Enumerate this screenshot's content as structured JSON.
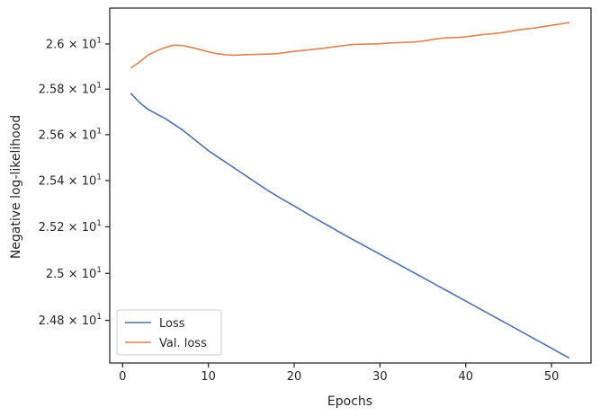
{
  "chart_data": {
    "type": "line",
    "xlabel": "Epochs",
    "ylabel": "Negative log-likelihood",
    "xlim": [
      -1.5,
      54.6
    ],
    "ylim": [
      24.62,
      26.16
    ],
    "y_scale": "log",
    "grid": false,
    "legend_position": "lower left",
    "x_ticks": [
      {
        "value": 0,
        "label": "0"
      },
      {
        "value": 10,
        "label": "10"
      },
      {
        "value": 20,
        "label": "20"
      },
      {
        "value": 30,
        "label": "30"
      },
      {
        "value": 40,
        "label": "40"
      },
      {
        "value": 50,
        "label": "50"
      }
    ],
    "y_ticks": [
      {
        "value": 24.8,
        "label": "2.48 × 10¹"
      },
      {
        "value": 25.0,
        "label": "2.5 × 10¹"
      },
      {
        "value": 25.2,
        "label": "2.52 × 10¹"
      },
      {
        "value": 25.4,
        "label": "2.54 × 10¹"
      },
      {
        "value": 25.6,
        "label": "2.56 × 10¹"
      },
      {
        "value": 25.8,
        "label": "2.58 × 10¹"
      },
      {
        "value": 26.0,
        "label": "2.6 × 10¹"
      }
    ],
    "series": [
      {
        "name": "Loss",
        "color": "#4c72b0",
        "x": [
          1,
          2,
          3,
          4,
          5,
          6,
          7,
          8,
          9,
          10,
          11,
          12,
          13,
          14,
          15,
          16,
          17,
          18,
          19,
          20,
          21,
          22,
          23,
          24,
          25,
          26,
          27,
          28,
          29,
          30,
          31,
          32,
          33,
          34,
          35,
          36,
          37,
          38,
          39,
          40,
          41,
          42,
          43,
          44,
          45,
          46,
          47,
          48,
          49,
          50,
          51,
          52
        ],
        "y": [
          25.78,
          25.74,
          25.71,
          25.69,
          25.67,
          25.645,
          25.62,
          25.59,
          25.56,
          25.53,
          25.505,
          25.48,
          25.455,
          25.43,
          25.405,
          25.38,
          25.355,
          25.333,
          25.311,
          25.29,
          25.268,
          25.246,
          25.225,
          25.204,
          25.183,
          25.162,
          25.142,
          25.122,
          25.102,
          25.082,
          25.062,
          25.042,
          25.022,
          25.002,
          24.982,
          24.962,
          24.942,
          24.922,
          24.902,
          24.882,
          24.862,
          24.842,
          24.822,
          24.802,
          24.782,
          24.762,
          24.742,
          24.722,
          24.702,
          24.682,
          24.662,
          24.642
        ]
      },
      {
        "name": "Val. loss",
        "color": "#dd8452",
        "x": [
          1,
          2,
          3,
          4,
          5,
          6,
          7,
          8,
          9,
          10,
          11,
          12,
          13,
          14,
          15,
          16,
          17,
          18,
          19,
          20,
          21,
          22,
          23,
          24,
          25,
          26,
          27,
          28,
          29,
          30,
          31,
          32,
          33,
          34,
          35,
          36,
          37,
          38,
          39,
          40,
          41,
          42,
          43,
          44,
          45,
          46,
          47,
          48,
          49,
          50,
          51,
          52
        ],
        "y": [
          25.895,
          25.92,
          25.952,
          25.97,
          25.985,
          25.995,
          25.993,
          25.985,
          25.975,
          25.965,
          25.957,
          25.952,
          25.95,
          25.952,
          25.953,
          25.954,
          25.955,
          25.957,
          25.962,
          25.967,
          25.971,
          25.975,
          25.979,
          25.984,
          25.989,
          25.994,
          25.998,
          25.999,
          26.0,
          26.001,
          26.004,
          26.006,
          26.007,
          26.009,
          26.013,
          26.019,
          26.025,
          26.028,
          26.029,
          26.032,
          26.037,
          26.042,
          26.045,
          26.049,
          26.055,
          26.062,
          26.067,
          26.071,
          26.077,
          26.083,
          26.089,
          26.095
        ]
      }
    ]
  }
}
